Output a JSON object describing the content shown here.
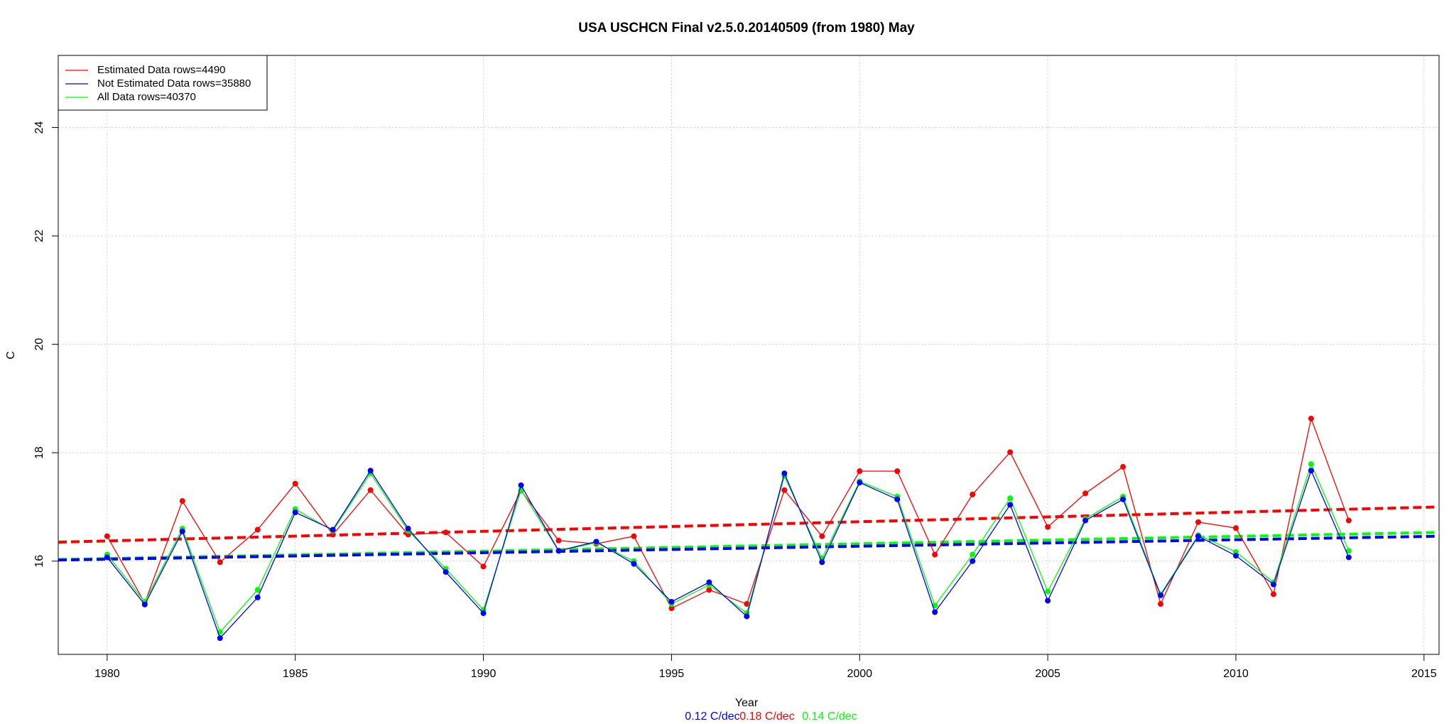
{
  "chart_data": {
    "type": "line",
    "title": "USA USCHCN Final v2.5.0.20140509 (from 1980) May",
    "x_label": "Year",
    "y_label": "C",
    "x": [
      1980,
      1981,
      1982,
      1983,
      1984,
      1985,
      1986,
      1987,
      1988,
      1989,
      1990,
      1991,
      1992,
      1993,
      1994,
      1995,
      1996,
      1997,
      1998,
      1999,
      2000,
      2001,
      2002,
      2003,
      2004,
      2005,
      2006,
      2007,
      2008,
      2009,
      2010,
      2011,
      2012,
      2013
    ],
    "series": [
      {
        "name": "Estimated Data rows=4490",
        "color": "#ff0000",
        "values": [
          16.46,
          15.23,
          17.11,
          15.98,
          16.58,
          17.43,
          16.49,
          17.31,
          16.49,
          16.53,
          15.9,
          17.3,
          16.38,
          16.32,
          16.46,
          15.13,
          15.47,
          15.21,
          17.31,
          16.46,
          17.66,
          17.66,
          16.12,
          17.23,
          18.01,
          16.63,
          17.25,
          17.74,
          15.21,
          16.72,
          16.61,
          15.39,
          18.63,
          16.75
        ]
      },
      {
        "name": "Not Estimated Data rows=35880",
        "color": "#0000ff",
        "values": [
          16.07,
          15.2,
          16.55,
          14.58,
          15.33,
          16.9,
          16.58,
          17.67,
          16.6,
          15.8,
          15.04,
          17.4,
          16.19,
          16.36,
          15.95,
          15.25,
          15.61,
          14.98,
          17.62,
          15.98,
          17.45,
          17.14,
          15.06,
          16.0,
          17.04,
          15.27,
          16.75,
          17.14,
          15.37,
          16.46,
          16.1,
          15.57,
          17.67,
          16.07
        ]
      },
      {
        "name": "All Data rows=40370",
        "color": "#00ff00",
        "values": [
          16.12,
          15.25,
          16.6,
          14.69,
          15.47,
          16.96,
          16.56,
          17.62,
          16.56,
          15.86,
          15.1,
          17.31,
          16.19,
          16.34,
          16.0,
          15.21,
          15.56,
          15.04,
          17.57,
          16.05,
          17.47,
          17.19,
          15.18,
          16.12,
          17.16,
          15.44,
          16.78,
          17.19,
          15.39,
          16.48,
          16.17,
          15.61,
          17.79,
          16.19
        ]
      }
    ],
    "trends": [
      {
        "color": "#ff0000",
        "x": [
          1978.7,
          2015.4
        ],
        "values": [
          16.35,
          17.0
        ]
      },
      {
        "color": "#00ff00",
        "x": [
          1978.7,
          2015.4
        ],
        "values": [
          16.03,
          16.53
        ]
      },
      {
        "color": "#0000ff",
        "x": [
          1978.7,
          2015.4
        ],
        "values": [
          16.02,
          16.46
        ]
      }
    ],
    "annotations": [
      {
        "text": "0.12 C/dec",
        "color": "#0000ff"
      },
      {
        "text": "0.18 C/dec",
        "color": "#ff0000"
      },
      {
        "text": "0.14 C/dec",
        "color": "#00ff00"
      }
    ],
    "xlim": [
      1978.7,
      2015.4
    ],
    "ylim": [
      14.28,
      25.33
    ],
    "xticks": [
      1980,
      1985,
      1990,
      1995,
      2000,
      2005,
      2010,
      2015
    ],
    "yticks": [
      16,
      18,
      20,
      22,
      24
    ],
    "grid": true,
    "legend": "top-left"
  }
}
